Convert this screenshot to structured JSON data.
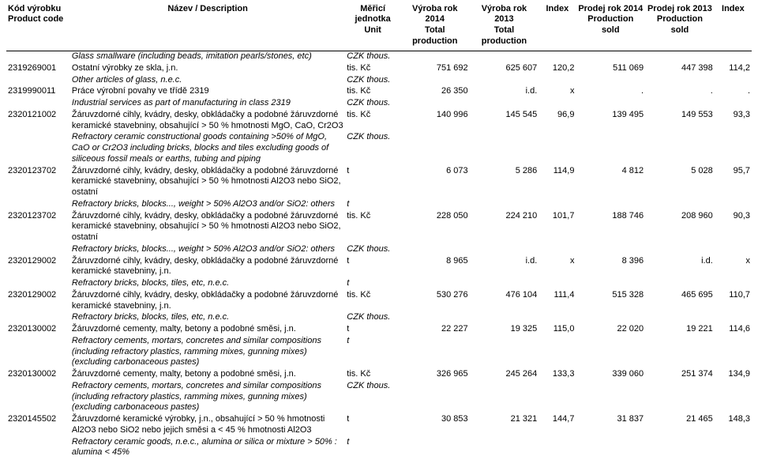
{
  "headers": {
    "code1": "Kód výrobku",
    "code2": "Product code",
    "desc": "Název / Description",
    "unit1": "Měřicí",
    "unit2": "jednotka",
    "unit3": "Unit",
    "prod14a": "Výroba rok 2014",
    "prod14b": "Total production",
    "prod13a": "Výroba rok 2013",
    "prod13b": "Total production",
    "index1": "Index",
    "sold14a": "Prodej rok 2014",
    "sold14b": "Production sold",
    "sold13a": "Prodej rok 2013",
    "sold13b": "Production sold",
    "index2": "Index"
  },
  "rows": [
    {
      "code": "",
      "desc": "Glass smallware (including beads, imitation pearls/stones, etc)",
      "it": true,
      "unit": "CZK thous.",
      "p14": "",
      "p13": "",
      "i1": "",
      "s14": "",
      "s13": "",
      "i2": ""
    },
    {
      "code": "2319269001",
      "desc": "Ostatní výrobky ze skla, j.n.",
      "it": false,
      "unit": "tis. Kč",
      "p14": "751 692",
      "p13": "625 607",
      "i1": "120,2",
      "s14": "511 069",
      "s13": "447 398",
      "i2": "114,2"
    },
    {
      "code": "",
      "desc": "Other articles of glass, n.e.c.",
      "it": true,
      "unit": "CZK thous.",
      "p14": "",
      "p13": "",
      "i1": "",
      "s14": "",
      "s13": "",
      "i2": ""
    },
    {
      "code": "2319990011",
      "desc": "Práce výrobní povahy ve třídě 2319",
      "it": false,
      "unit": "tis. Kč",
      "p14": "26 350",
      "p13": "i.d.",
      "i1": "x",
      "s14": ".",
      "s13": ".",
      "i2": "."
    },
    {
      "code": "",
      "desc": "Industrial services as part of manufacturing in class 2319",
      "it": true,
      "unit": "CZK thous.",
      "p14": "",
      "p13": "",
      "i1": "",
      "s14": "",
      "s13": "",
      "i2": ""
    },
    {
      "code": "2320121002",
      "desc": "Žáruvzdorné cihly, kvádry, desky, obkládačky a podobné žáruvzdorné keramické stavebniny, obsahující > 50 % hmotnosti MgO, CaO, Cr2O3",
      "it": false,
      "unit": "tis. Kč",
      "p14": "140 996",
      "p13": "145 545",
      "i1": "96,9",
      "s14": "139 495",
      "s13": "149 553",
      "i2": "93,3"
    },
    {
      "code": "",
      "desc": "Refractory ceramic constructional goods containing >50% of MgO, CaO or Cr2O3 including bricks, blocks and tiles excluding goods of siliceous fossil meals or earths, tubing and piping",
      "it": true,
      "unit": "CZK thous.",
      "p14": "",
      "p13": "",
      "i1": "",
      "s14": "",
      "s13": "",
      "i2": ""
    },
    {
      "code": "2320123702",
      "desc": "Žáruvzdorné cihly, kvádry, desky, obkládačky a podobné žáruvzdorné keramické stavebniny, obsahující > 50 % hmotnosti Al2O3 nebo SiO2, ostatní",
      "it": false,
      "unit": "t",
      "p14": "6 073",
      "p13": "5 286",
      "i1": "114,9",
      "s14": "4 812",
      "s13": "5 028",
      "i2": "95,7"
    },
    {
      "code": "",
      "desc": "Refractory bricks, blocks..., weight > 50% Al2O3 and/or SiO2: others",
      "it": true,
      "unit": "t",
      "p14": "",
      "p13": "",
      "i1": "",
      "s14": "",
      "s13": "",
      "i2": ""
    },
    {
      "code": "2320123702",
      "desc": "Žáruvzdorné cihly, kvádry, desky, obkládačky a podobné žáruvzdorné keramické stavebniny, obsahující > 50 % hmotnosti Al2O3 nebo SiO2, ostatní",
      "it": false,
      "unit": "tis. Kč",
      "p14": "228 050",
      "p13": "224 210",
      "i1": "101,7",
      "s14": "188 746",
      "s13": "208 960",
      "i2": "90,3"
    },
    {
      "code": "",
      "desc": "Refractory bricks, blocks..., weight > 50% Al2O3 and/or SiO2: others",
      "it": true,
      "unit": "CZK thous.",
      "p14": "",
      "p13": "",
      "i1": "",
      "s14": "",
      "s13": "",
      "i2": ""
    },
    {
      "code": "2320129002",
      "desc": "Žáruvzdorné cihly, kvádry, desky, obkládačky a podobné žáruvzdorné keramické stavebniny, j.n.",
      "it": false,
      "unit": "t",
      "p14": "8 965",
      "p13": "i.d.",
      "i1": "x",
      "s14": "8 396",
      "s13": "i.d.",
      "i2": "x"
    },
    {
      "code": "",
      "desc": "Refractory bricks, blocks, tiles, etc, n.e.c.",
      "it": true,
      "unit": "t",
      "p14": "",
      "p13": "",
      "i1": "",
      "s14": "",
      "s13": "",
      "i2": ""
    },
    {
      "code": "2320129002",
      "desc": "Žáruvzdorné cihly, kvádry, desky, obkládačky a podobné žáruvzdorné keramické stavebniny, j.n.",
      "it": false,
      "unit": "tis. Kč",
      "p14": "530 276",
      "p13": "476 104",
      "i1": "111,4",
      "s14": "515 328",
      "s13": "465 695",
      "i2": "110,7"
    },
    {
      "code": "",
      "desc": "Refractory bricks, blocks, tiles, etc, n.e.c.",
      "it": true,
      "unit": "CZK thous.",
      "p14": "",
      "p13": "",
      "i1": "",
      "s14": "",
      "s13": "",
      "i2": ""
    },
    {
      "code": "2320130002",
      "desc": "Žáruvzdorné cementy, malty, betony a podobné směsi, j.n.",
      "it": false,
      "unit": "t",
      "p14": "22 227",
      "p13": "19 325",
      "i1": "115,0",
      "s14": "22 020",
      "s13": "19 221",
      "i2": "114,6"
    },
    {
      "code": "",
      "desc": "Refractory cements, mortars, concretes and similar compositions (including refractory plastics, ramming mixes, gunning mixes) (excluding carbonaceous pastes)",
      "it": true,
      "unit": "t",
      "p14": "",
      "p13": "",
      "i1": "",
      "s14": "",
      "s13": "",
      "i2": ""
    },
    {
      "code": "2320130002",
      "desc": "Žáruvzdorné cementy, malty, betony a podobné směsi, j.n.",
      "it": false,
      "unit": "tis. Kč",
      "p14": "326 965",
      "p13": "245 264",
      "i1": "133,3",
      "s14": "339 060",
      "s13": "251 374",
      "i2": "134,9"
    },
    {
      "code": "",
      "desc": "Refractory cements, mortars, concretes and similar compositions (including refractory plastics, ramming mixes, gunning mixes) (excluding carbonaceous pastes)",
      "it": true,
      "unit": "CZK thous.",
      "p14": "",
      "p13": "",
      "i1": "",
      "s14": "",
      "s13": "",
      "i2": ""
    },
    {
      "code": "2320145502",
      "desc": "Žáruvzdorné keramické výrobky, j.n., obsahující > 50 % hmotnosti Al2O3 nebo SiO2 nebo jejich směsi a < 45 % hmotnosti Al2O3",
      "it": false,
      "unit": "t",
      "p14": "30 853",
      "p13": "21 321",
      "i1": "144,7",
      "s14": "31 837",
      "s13": "21 465",
      "i2": "148,3"
    },
    {
      "code": "",
      "desc": "Refractory ceramic goods, n.e.c., alumina or silica or mixture > 50% : alumina < 45%",
      "it": true,
      "unit": "t",
      "p14": "",
      "p13": "",
      "i1": "",
      "s14": "",
      "s13": "",
      "i2": ""
    }
  ]
}
